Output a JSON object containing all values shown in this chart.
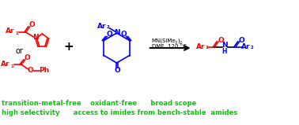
{
  "bg_color": "#ffffff",
  "red_color": "#ff0000",
  "blue_color": "#0000ff",
  "black_color": "#000000",
  "green_color": "#00cc00",
  "text_line1": "transition-metal-free    oxidant-free      broad scope",
  "text_line2": "high selectivity      access to imides from bench-stable  amides",
  "or_text": "or",
  "plus_text": "+",
  "figsize": [
    3.78,
    1.59
  ],
  "dpi": 100
}
